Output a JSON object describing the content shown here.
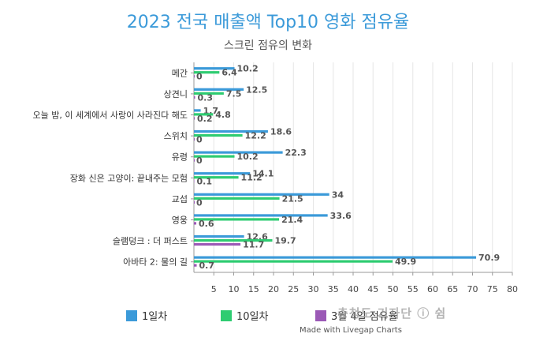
{
  "chart_data": {
    "type": "bar",
    "orientation": "horizontal",
    "title": "2023 전국 매출액 Top10 영화 점유율",
    "subtitle": "스크린 점유의 변화",
    "categories": [
      "메간",
      "상견니",
      "오늘 밤, 이 세계에서 사랑이 사라진다 해도",
      "스위치",
      "유령",
      "장화 신은 고양이: 끝내주는 모험",
      "교섭",
      "영웅",
      "슬램덩크 : 더 퍼스트",
      "아바타 2: 물의 길"
    ],
    "series": [
      {
        "name": "1일차",
        "color": "#3b9ad9",
        "values": [
          10.2,
          12.5,
          1.7,
          18.6,
          22.3,
          14.1,
          34,
          33.6,
          12.6,
          70.9
        ]
      },
      {
        "name": "10일차",
        "color": "#2ecc71",
        "values": [
          6.4,
          7.5,
          4.8,
          12.2,
          10.2,
          11.2,
          21.5,
          21.4,
          19.7,
          49.9
        ]
      },
      {
        "name": "3월 4일 점유율",
        "color": "#9b59b6",
        "values": [
          0,
          0.3,
          0.2,
          0,
          0,
          0.1,
          0,
          0.6,
          11.7,
          0.7
        ]
      }
    ],
    "xlim": [
      0,
      80
    ],
    "xticks": [
      5,
      10,
      15,
      20,
      25,
      30,
      35,
      40,
      45,
      50,
      55,
      60,
      65,
      70,
      75,
      80
    ],
    "grid": true,
    "legend_position": "bottom"
  },
  "credit": "Made with Livegap Charts",
  "watermark": "충청도 기자단 ⓘ 쉼"
}
